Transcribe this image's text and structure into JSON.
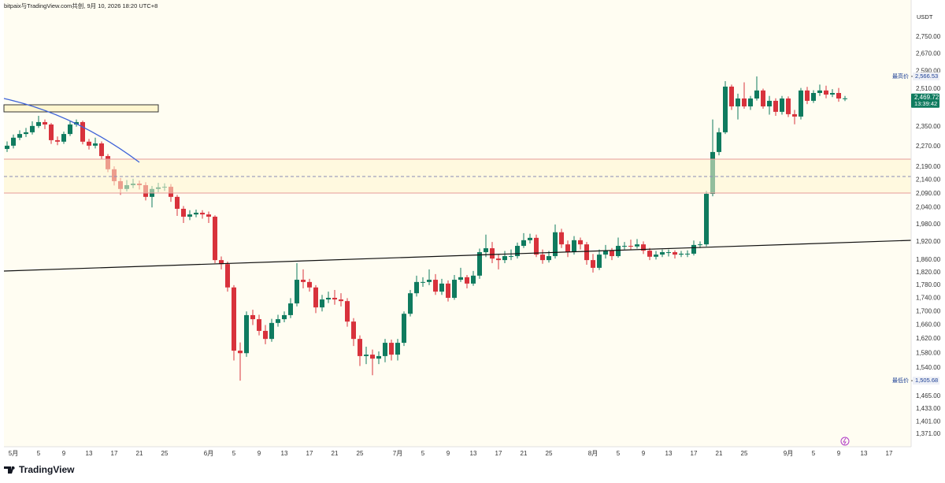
{
  "chart_data": {
    "type": "candlestick",
    "source": "bitpaix与TradingView.com共创, 9月 10, 2026 18:20 UTC+8",
    "currency": "USDT",
    "brand": "TradingView",
    "up_color": "#0f7b5f",
    "down_color": "#d8323c",
    "log_scale": true,
    "grid": false,
    "xlim": [
      "2026-04-29",
      "2026-09-20"
    ],
    "ylim": [
      1341,
      2902
    ],
    "yticks": [
      {
        "value": 2750,
        "label": "2,750.00"
      },
      {
        "value": 2670,
        "label": "2,670.00"
      },
      {
        "value": 2590,
        "label": "2,590.00"
      },
      {
        "value": 2510,
        "label": "2,510.00"
      },
      {
        "value": 2350,
        "label": "2,350.00"
      },
      {
        "value": 2270,
        "label": "2,270.00"
      },
      {
        "value": 2190,
        "label": "2,190.00"
      },
      {
        "value": 2140,
        "label": "2,140.00"
      },
      {
        "value": 2090,
        "label": "2,090.00"
      },
      {
        "value": 2040,
        "label": "2,040.00"
      },
      {
        "value": 1980,
        "label": "1,980.00"
      },
      {
        "value": 1920,
        "label": "1,920.00"
      },
      {
        "value": 1860,
        "label": "1,860.00"
      },
      {
        "value": 1820,
        "label": "1,820.00"
      },
      {
        "value": 1780,
        "label": "1,780.00"
      },
      {
        "value": 1740,
        "label": "1,740.00"
      },
      {
        "value": 1700,
        "label": "1,700.00"
      },
      {
        "value": 1660,
        "label": "1,660.00"
      },
      {
        "value": 1620,
        "label": "1,620.00"
      },
      {
        "value": 1580,
        "label": "1,580.00"
      },
      {
        "value": 1540,
        "label": "1,540.00"
      },
      {
        "value": 1465,
        "label": "1,465.00"
      },
      {
        "value": 1433,
        "label": "1,433.00"
      },
      {
        "value": 1401,
        "label": "1,401.00"
      },
      {
        "value": 1371,
        "label": "1,371.00"
      }
    ],
    "xticks": [
      {
        "value": "2026-05-01",
        "label": "5月"
      },
      {
        "value": "2026-05-05",
        "label": "5"
      },
      {
        "value": "2026-05-09",
        "label": "9"
      },
      {
        "value": "2026-05-13",
        "label": "13"
      },
      {
        "value": "2026-05-17",
        "label": "17"
      },
      {
        "value": "2026-05-21",
        "label": "21"
      },
      {
        "value": "2026-05-25",
        "label": "25"
      },
      {
        "value": "2026-06-01",
        "label": "6月"
      },
      {
        "value": "2026-06-05",
        "label": "5"
      },
      {
        "value": "2026-06-09",
        "label": "9"
      },
      {
        "value": "2026-06-13",
        "label": "13"
      },
      {
        "value": "2026-06-17",
        "label": "17"
      },
      {
        "value": "2026-06-21",
        "label": "21"
      },
      {
        "value": "2026-06-25",
        "label": "25"
      },
      {
        "value": "2026-07-01",
        "label": "7月"
      },
      {
        "value": "2026-07-05",
        "label": "5"
      },
      {
        "value": "2026-07-09",
        "label": "9"
      },
      {
        "value": "2026-07-13",
        "label": "13"
      },
      {
        "value": "2026-07-17",
        "label": "17"
      },
      {
        "value": "2026-07-21",
        "label": "21"
      },
      {
        "value": "2026-07-25",
        "label": "25"
      },
      {
        "value": "2026-08-01",
        "label": "8月"
      },
      {
        "value": "2026-08-05",
        "label": "5"
      },
      {
        "value": "2026-08-09",
        "label": "9"
      },
      {
        "value": "2026-08-13",
        "label": "13"
      },
      {
        "value": "2026-08-17",
        "label": "17"
      },
      {
        "value": "2026-08-21",
        "label": "21"
      },
      {
        "value": "2026-08-25",
        "label": "25"
      },
      {
        "value": "2026-09-01",
        "label": "9月"
      },
      {
        "value": "2026-09-05",
        "label": "5"
      },
      {
        "value": "2026-09-09",
        "label": "9"
      },
      {
        "value": "2026-09-13",
        "label": "13"
      },
      {
        "value": "2026-09-17",
        "label": "17"
      }
    ],
    "x": [
      "2026-04-30",
      "2026-05-01",
      "2026-05-02",
      "2026-05-03",
      "2026-05-04",
      "2026-05-05",
      "2026-05-06",
      "2026-05-07",
      "2026-05-08",
      "2026-05-09",
      "2026-05-10",
      "2026-05-11",
      "2026-05-12",
      "2026-05-13",
      "2026-05-14",
      "2026-05-15",
      "2026-05-16",
      "2026-05-17",
      "2026-05-18",
      "2026-05-19",
      "2026-05-20",
      "2026-05-21",
      "2026-05-22",
      "2026-05-23",
      "2026-05-24",
      "2026-05-25",
      "2026-05-26",
      "2026-05-27",
      "2026-05-28",
      "2026-05-29",
      "2026-05-30",
      "2026-05-31",
      "2026-06-01",
      "2026-06-02",
      "2026-06-03",
      "2026-06-04",
      "2026-06-05",
      "2026-06-06",
      "2026-06-07",
      "2026-06-08",
      "2026-06-09",
      "2026-06-10",
      "2026-06-11",
      "2026-06-12",
      "2026-06-13",
      "2026-06-14",
      "2026-06-15",
      "2026-06-16",
      "2026-06-17",
      "2026-06-18",
      "2026-06-19",
      "2026-06-20",
      "2026-06-21",
      "2026-06-22",
      "2026-06-23",
      "2026-06-24",
      "2026-06-25",
      "2026-06-26",
      "2026-06-27",
      "2026-06-28",
      "2026-06-29",
      "2026-06-30",
      "2026-07-01",
      "2026-07-02",
      "2026-07-03",
      "2026-07-04",
      "2026-07-05",
      "2026-07-06",
      "2026-07-07",
      "2026-07-08",
      "2026-07-09",
      "2026-07-10",
      "2026-07-11",
      "2026-07-12",
      "2026-07-13",
      "2026-07-14",
      "2026-07-15",
      "2026-07-16",
      "2026-07-17",
      "2026-07-18",
      "2026-07-19",
      "2026-07-20",
      "2026-07-21",
      "2026-07-22",
      "2026-07-23",
      "2026-07-24",
      "2026-07-25",
      "2026-07-26",
      "2026-07-27",
      "2026-07-28",
      "2026-07-29",
      "2026-07-30",
      "2026-07-31",
      "2026-08-01",
      "2026-08-02",
      "2026-08-03",
      "2026-08-04",
      "2026-08-05",
      "2026-08-06",
      "2026-08-07",
      "2026-08-08",
      "2026-08-09",
      "2026-08-10",
      "2026-08-11",
      "2026-08-12",
      "2026-08-13",
      "2026-08-14",
      "2026-08-15",
      "2026-08-16",
      "2026-08-17",
      "2026-08-18",
      "2026-08-19",
      "2026-08-20",
      "2026-08-21",
      "2026-08-22",
      "2026-08-23",
      "2026-08-24",
      "2026-08-25",
      "2026-08-26",
      "2026-08-27",
      "2026-08-28",
      "2026-08-29",
      "2026-08-30",
      "2026-08-31",
      "2026-09-01",
      "2026-09-02",
      "2026-09-03",
      "2026-09-04",
      "2026-09-05",
      "2026-09-06",
      "2026-09-07",
      "2026-09-08",
      "2026-09-09",
      "2026-09-10"
    ],
    "open": [
      2260,
      2273,
      2305,
      2320,
      2327,
      2353,
      2369,
      2359,
      2295,
      2289,
      2320,
      2359,
      2369,
      2289,
      2273,
      2282,
      2232,
      2181,
      2136,
      2107,
      2121,
      2127,
      2121,
      2078,
      2107,
      2113,
      2115,
      2078,
      2035,
      2007,
      2015,
      2021,
      2015,
      2007,
      1860,
      1847,
      1773,
      1587,
      1580,
      1689,
      1677,
      1643,
      1620,
      1666,
      1677,
      1689,
      1724,
      1797,
      1790,
      1773,
      1712,
      1736,
      1741,
      1736,
      1731,
      1670,
      1620,
      1572,
      1576,
      1565,
      1572,
      1609,
      1576,
      1609,
      1693,
      1755,
      1790,
      1790,
      1797,
      1760,
      1785,
      1741,
      1797,
      1805,
      1785,
      1810,
      1886,
      1899,
      1865,
      1860,
      1873,
      1873,
      1907,
      1926,
      1934,
      1878,
      1860,
      1873,
      1953,
      1912,
      1886,
      1926,
      1912,
      1860,
      1835,
      1878,
      1891,
      1873,
      1907,
      1907,
      1905,
      1912,
      1891,
      1871,
      1878,
      1886,
      1886,
      1878,
      1881,
      1881,
      1910,
      1912,
      2089,
      2248,
      2327,
      2521,
      2435,
      2469,
      2435,
      2469,
      2504,
      2435,
      2459,
      2412,
      2469,
      2402,
      2392,
      2504,
      2459,
      2493,
      2504,
      2486,
      2493,
      2469
    ],
    "high": [
      2290,
      2318,
      2335,
      2345,
      2372,
      2395,
      2380,
      2365,
      2310,
      2330,
      2372,
      2380,
      2375,
      2300,
      2305,
      2290,
      2240,
      2192,
      2148,
      2140,
      2145,
      2138,
      2132,
      2118,
      2130,
      2128,
      2125,
      2085,
      2045,
      2030,
      2032,
      2030,
      2025,
      2012,
      1872,
      1855,
      1780,
      1610,
      1700,
      1705,
      1690,
      1660,
      1678,
      1690,
      1700,
      1740,
      1850,
      1830,
      1800,
      1780,
      1750,
      1760,
      1765,
      1755,
      1740,
      1680,
      1630,
      1598,
      1590,
      1585,
      1620,
      1618,
      1620,
      1700,
      1765,
      1810,
      1805,
      1830,
      1815,
      1800,
      1795,
      1812,
      1835,
      1812,
      1825,
      1898,
      1945,
      1920,
      1878,
      1890,
      1895,
      1918,
      1950,
      1948,
      1945,
      1895,
      1890,
      1980,
      1965,
      1925,
      1940,
      1935,
      1920,
      1880,
      1895,
      1910,
      1900,
      1935,
      1920,
      1928,
      1930,
      1922,
      1900,
      1890,
      1895,
      1895,
      1892,
      1890,
      1892,
      1925,
      1922,
      2100,
      2380,
      2345,
      2545,
      2530,
      2490,
      2540,
      2480,
      2566.53,
      2512,
      2480,
      2470,
      2480,
      2478,
      2420,
      2515,
      2520,
      2505,
      2530,
      2525,
      2510,
      2515,
      2480
    ],
    "low": [
      2248,
      2262,
      2295,
      2308,
      2318,
      2345,
      2340,
      2280,
      2275,
      2280,
      2312,
      2350,
      2278,
      2258,
      2262,
      2220,
      2170,
      2120,
      2085,
      2098,
      2110,
      2105,
      2065,
      2040,
      2095,
      2100,
      2060,
      2010,
      1985,
      1995,
      2005,
      2000,
      1985,
      1850,
      1830,
      1760,
      1560,
      1505.68,
      1570,
      1660,
      1630,
      1605,
      1612,
      1655,
      1668,
      1680,
      1715,
      1770,
      1760,
      1695,
      1700,
      1725,
      1720,
      1715,
      1655,
      1600,
      1545,
      1550,
      1520,
      1550,
      1555,
      1560,
      1560,
      1600,
      1685,
      1745,
      1775,
      1780,
      1750,
      1750,
      1730,
      1735,
      1790,
      1770,
      1778,
      1800,
      1870,
      1850,
      1830,
      1850,
      1860,
      1865,
      1900,
      1915,
      1870,
      1848,
      1852,
      1865,
      1900,
      1870,
      1878,
      1895,
      1845,
      1820,
      1828,
      1865,
      1860,
      1868,
      1895,
      1895,
      1898,
      1880,
      1860,
      1862,
      1870,
      1872,
      1865,
      1870,
      1870,
      1875,
      1900,
      1905,
      2080,
      2235,
      2320,
      2420,
      2380,
      2425,
      2420,
      2460,
      2425,
      2400,
      2395,
      2400,
      2390,
      2360,
      2380,
      2445,
      2450,
      2480,
      2470,
      2475,
      2455,
      2458
    ],
    "close": [
      2273,
      2305,
      2320,
      2327,
      2353,
      2369,
      2359,
      2295,
      2289,
      2320,
      2359,
      2369,
      2289,
      2273,
      2282,
      2232,
      2181,
      2136,
      2107,
      2121,
      2127,
      2121,
      2078,
      2107,
      2113,
      2115,
      2078,
      2035,
      2007,
      2015,
      2021,
      2015,
      2007,
      1860,
      1847,
      1773,
      1587,
      1580,
      1689,
      1677,
      1643,
      1620,
      1666,
      1677,
      1689,
      1724,
      1797,
      1790,
      1773,
      1712,
      1736,
      1741,
      1736,
      1731,
      1670,
      1620,
      1572,
      1576,
      1565,
      1572,
      1609,
      1576,
      1609,
      1693,
      1755,
      1790,
      1790,
      1797,
      1760,
      1785,
      1741,
      1797,
      1805,
      1785,
      1810,
      1886,
      1899,
      1865,
      1860,
      1873,
      1873,
      1907,
      1926,
      1934,
      1878,
      1860,
      1873,
      1953,
      1912,
      1886,
      1926,
      1912,
      1860,
      1835,
      1878,
      1891,
      1873,
      1907,
      1907,
      1905,
      1912,
      1891,
      1871,
      1878,
      1886,
      1886,
      1878,
      1881,
      1881,
      1910,
      1912,
      2089,
      2248,
      2327,
      2521,
      2435,
      2469,
      2435,
      2469,
      2504,
      2435,
      2459,
      2412,
      2469,
      2402,
      2392,
      2504,
      2459,
      2493,
      2504,
      2486,
      2493,
      2469,
      2469.72
    ],
    "price_labels": [
      {
        "name": "最高价",
        "value": 2566.53,
        "label": "2,566.53"
      },
      {
        "name": "最低价",
        "value": 1505.68,
        "label": "1,505.68"
      }
    ],
    "last_price": {
      "value": 2469.72,
      "label": "2,469.72",
      "countdown": "13:39:42"
    }
  }
}
